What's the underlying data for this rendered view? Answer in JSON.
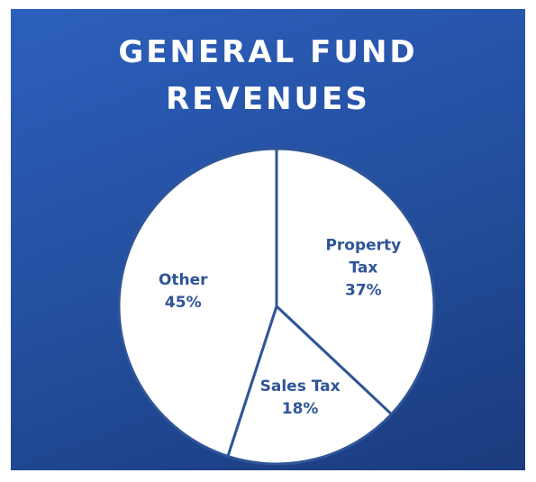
{
  "chart_data": {
    "type": "pie",
    "title": "GENERAL FUND REVENUES",
    "categories": [
      "Property Tax",
      "Sales Tax",
      "Other"
    ],
    "values": [
      37,
      18,
      45
    ],
    "value_labels": [
      "37%",
      "18%",
      "45%"
    ],
    "color": "#ffffff",
    "edge_color": "#2f5597",
    "label_color": "#2f5597"
  }
}
